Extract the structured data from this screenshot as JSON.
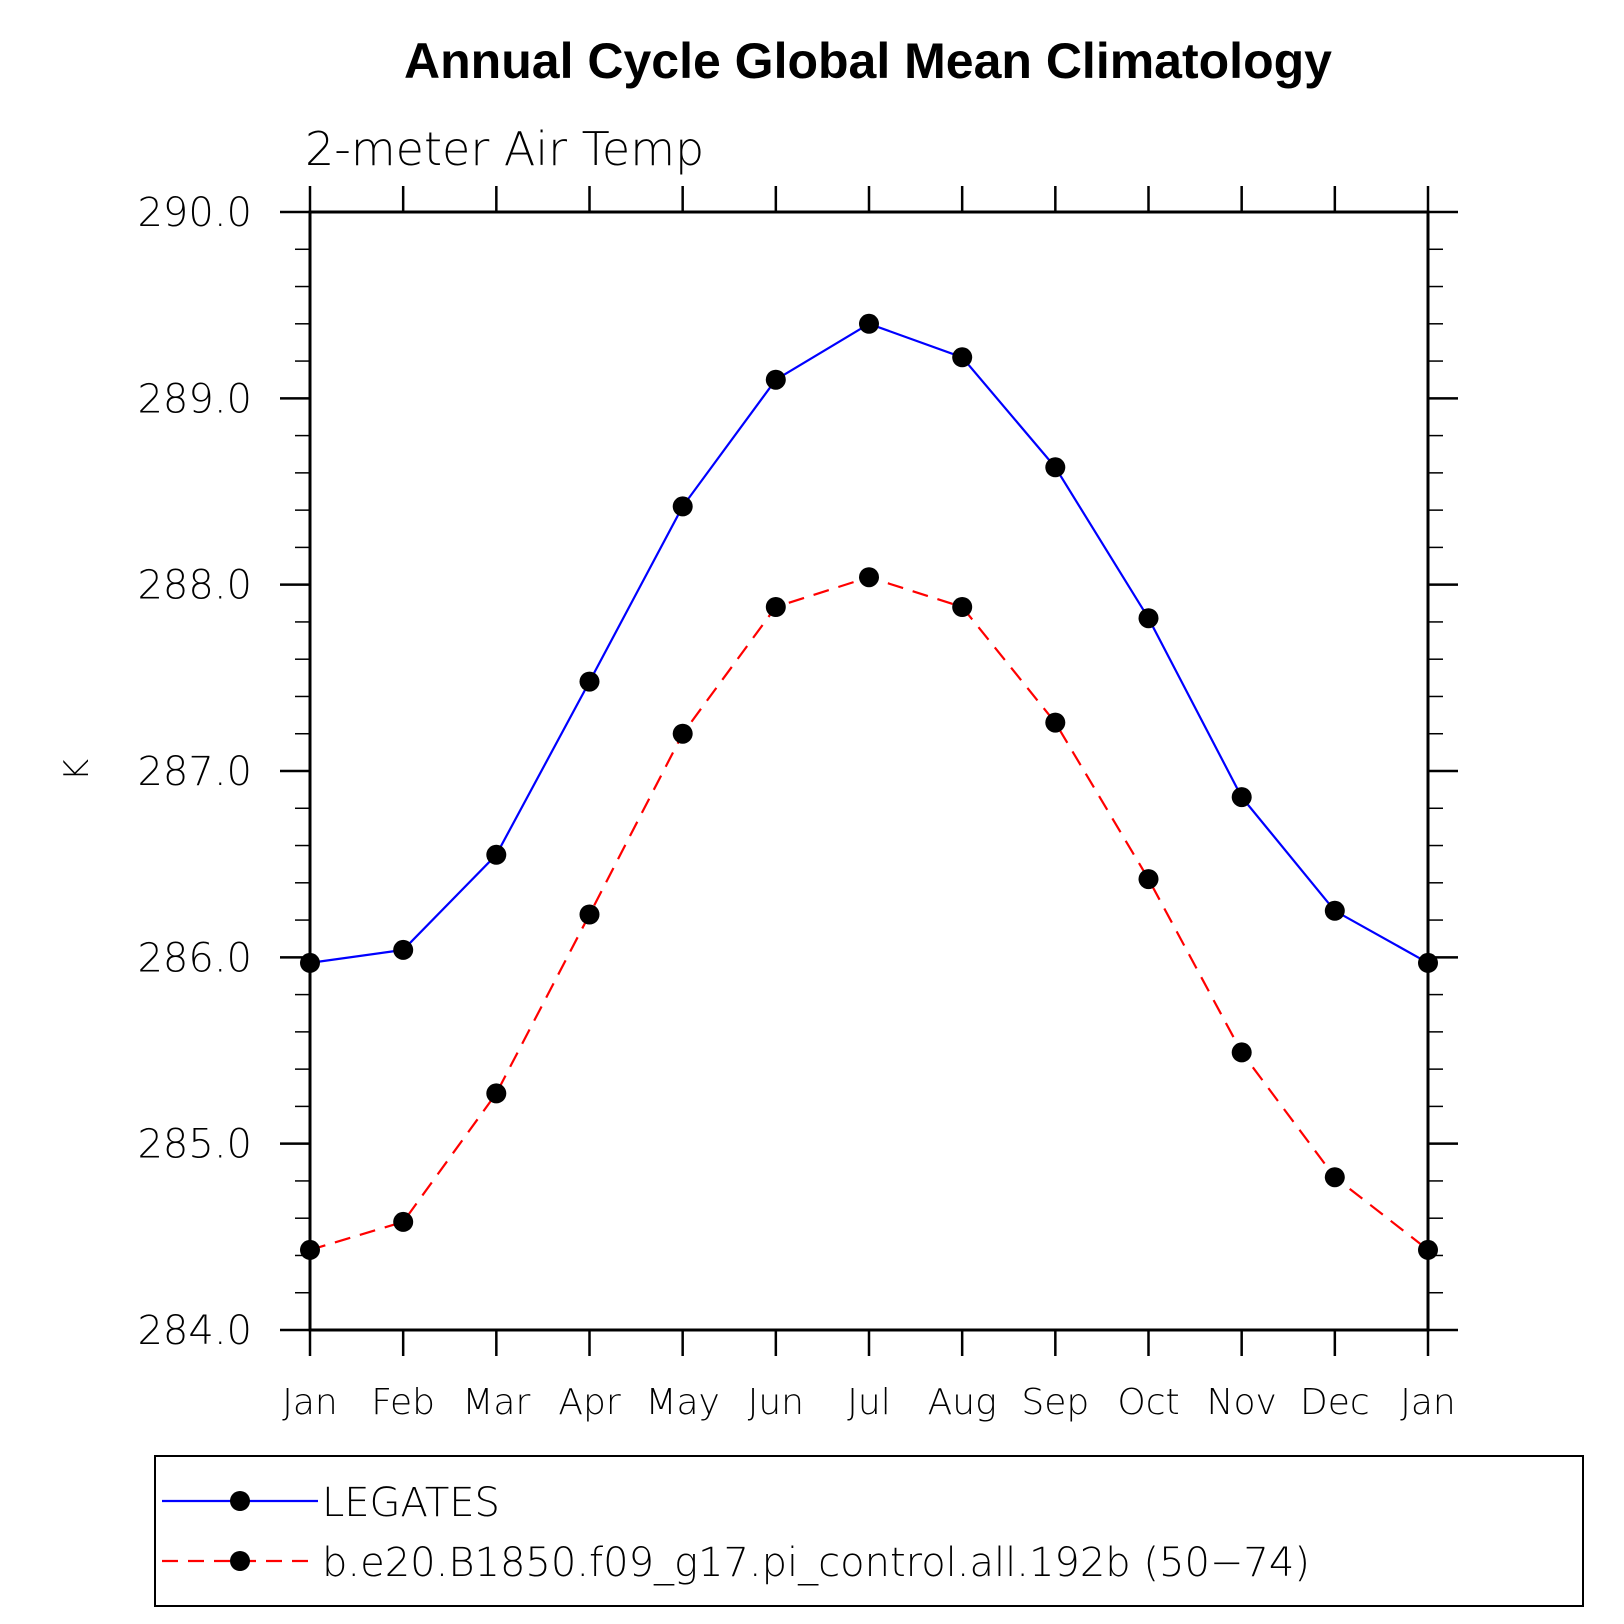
{
  "chart_data": {
    "type": "line",
    "title": "Annual Cycle Global Mean Climatology",
    "subtitle": "2-meter Air Temp",
    "ylabel": "K",
    "xlabel": "",
    "categories": [
      "Jan",
      "Feb",
      "Mar",
      "Apr",
      "May",
      "Jun",
      "Jul",
      "Aug",
      "Sep",
      "Oct",
      "Nov",
      "Dec",
      "Jan"
    ],
    "ylim": [
      284.0,
      290.0
    ],
    "yticks": [
      "284.0",
      "285.0",
      "286.0",
      "287.0",
      "288.0",
      "289.0",
      "290.0"
    ],
    "grid": false,
    "legend_position": "bottom",
    "series": [
      {
        "name": "LEGATES",
        "color": "#0000ff",
        "line_style": "solid",
        "marker": "filled-circle",
        "values": [
          285.97,
          286.04,
          286.55,
          287.48,
          288.42,
          289.1,
          289.4,
          289.22,
          288.63,
          287.82,
          286.86,
          286.25,
          285.97
        ]
      },
      {
        "name": "b.e20.B1850.f09_g17.pi_control.all.192b (50−74)",
        "color": "#ff0000",
        "line_style": "dashed",
        "marker": "filled-circle",
        "values": [
          284.43,
          284.58,
          285.27,
          286.23,
          287.2,
          287.88,
          288.04,
          287.88,
          287.26,
          286.42,
          285.49,
          284.82,
          284.43
        ]
      }
    ]
  }
}
